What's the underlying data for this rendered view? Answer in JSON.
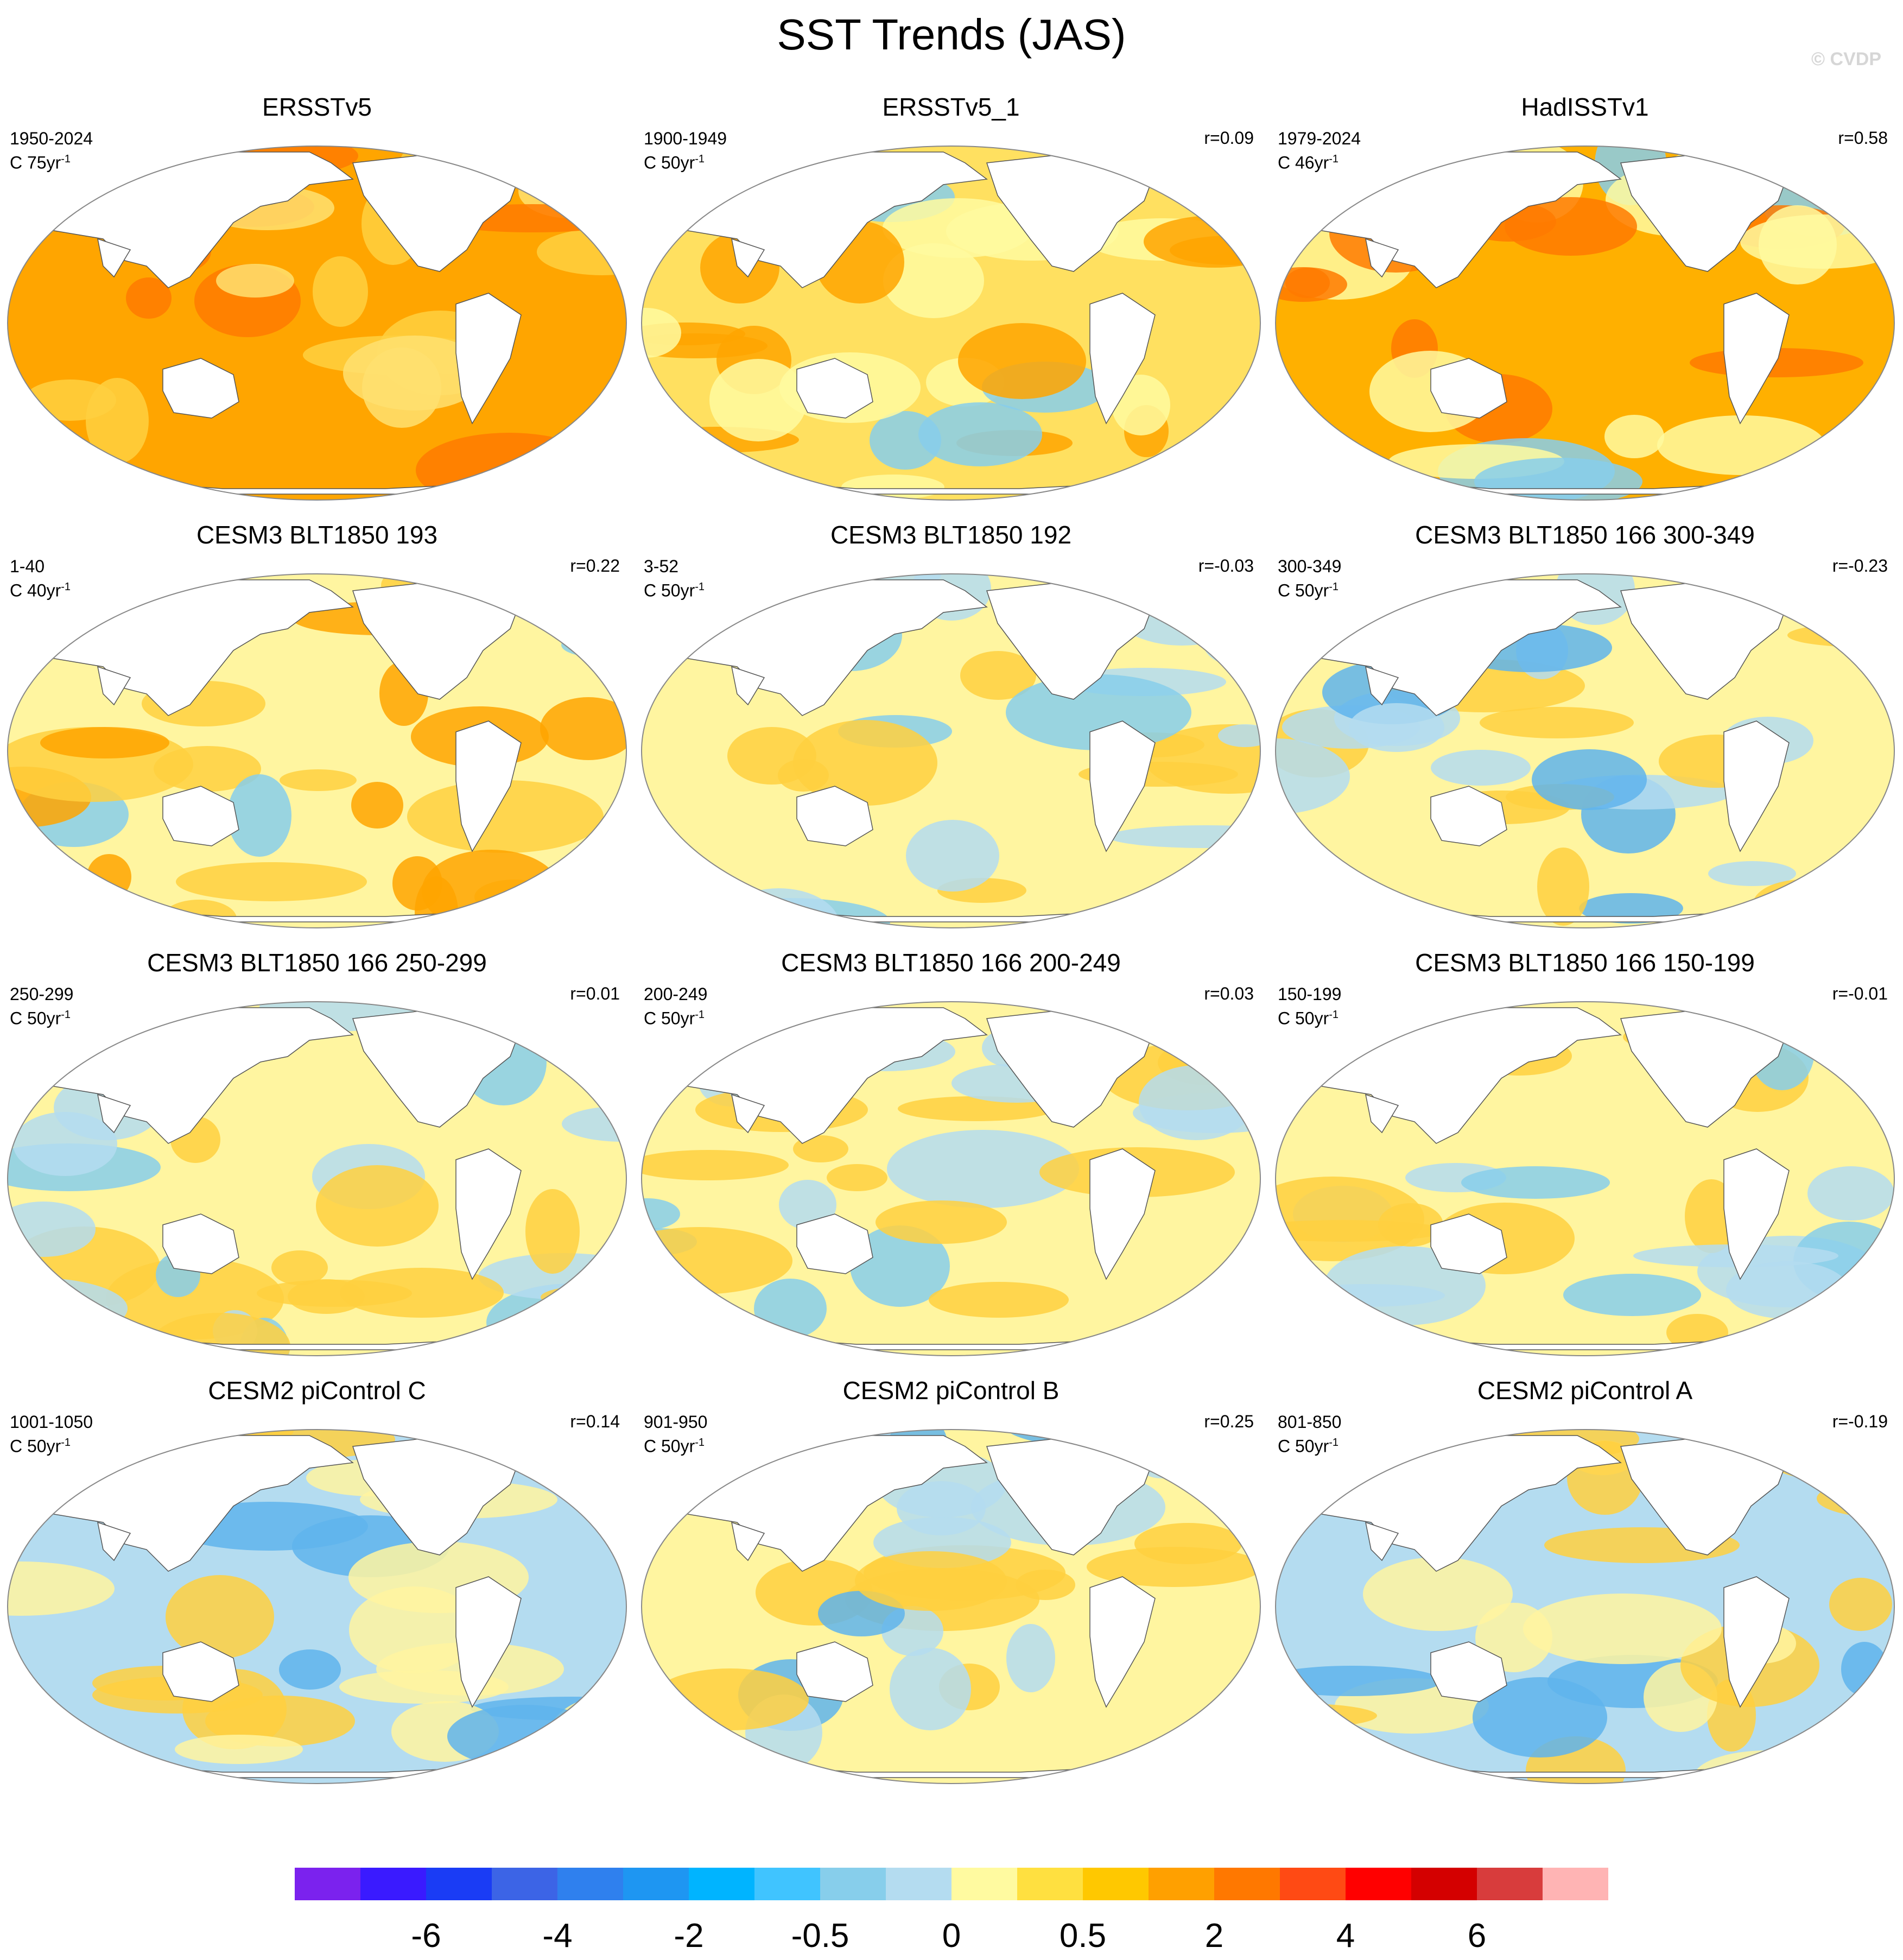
{
  "title": "SST Trends (JAS)",
  "watermark": "© CVDP",
  "panels": [
    {
      "title": "ERSSTv5",
      "period": "1950-2024",
      "units": "C 75yr",
      "r": "",
      "colors": {
        "base": "#ffa500",
        "hi": "#ff7a00",
        "lo": "#ffe070",
        "cool": "#ffd040"
      }
    },
    {
      "title": "ERSSTv5_1",
      "period": "1900-1949",
      "units": "C 50yr",
      "r": "r=0.09",
      "colors": {
        "base": "#ffe060",
        "hi": "#ffa500",
        "lo": "#87ceeb",
        "cool": "#fffaa0"
      }
    },
    {
      "title": "HadISSTv1",
      "period": "1979-2024",
      "units": "C 46yr",
      "r": "r=0.58",
      "colors": {
        "base": "#ffb000",
        "hi": "#ff7a00",
        "lo": "#87ceeb",
        "cool": "#fffaa0"
      }
    },
    {
      "title": "CESM3 BLT1850 193",
      "period": "1-40",
      "units": "C 40yr",
      "r": "r=0.22",
      "colors": {
        "base": "#fff5a0",
        "hi": "#ffa500",
        "lo": "#87ceeb",
        "cool": "#ffd040"
      }
    },
    {
      "title": "CESM3 BLT1850 192",
      "period": "3-52",
      "units": "C 50yr",
      "r": "r=-0.03",
      "colors": {
        "base": "#fff5a0",
        "hi": "#ffd040",
        "lo": "#87ceeb",
        "cool": "#b4dcf0"
      }
    },
    {
      "title": "CESM3 BLT1850 166 300-349",
      "period": "300-349",
      "units": "C 50yr",
      "r": "r=-0.23",
      "colors": {
        "base": "#fff5a0",
        "hi": "#ffd040",
        "lo": "#5fb4ec",
        "cool": "#b4dcf0"
      }
    },
    {
      "title": "CESM3 BLT1850 166 250-299",
      "period": "250-299",
      "units": "C 50yr",
      "r": "r=0.01",
      "colors": {
        "base": "#fff5a0",
        "hi": "#ffd040",
        "lo": "#87ceeb",
        "cool": "#b4dcf0"
      }
    },
    {
      "title": "CESM3 BLT1850 166 200-249",
      "period": "200-249",
      "units": "C 50yr",
      "r": "r=0.03",
      "colors": {
        "base": "#fff5a0",
        "hi": "#ffd040",
        "lo": "#87ceeb",
        "cool": "#b4dcf0"
      }
    },
    {
      "title": "CESM3 BLT1850 166 150-199",
      "period": "150-199",
      "units": "C 50yr",
      "r": "r=-0.01",
      "colors": {
        "base": "#fff5a0",
        "hi": "#ffd040",
        "lo": "#87ceeb",
        "cool": "#b4dcf0"
      }
    },
    {
      "title": "CESM2 piControl C",
      "period": "1001-1050",
      "units": "C 50yr",
      "r": "r=0.14",
      "colors": {
        "base": "#b4dcf0",
        "hi": "#ffd040",
        "lo": "#5fb4ec",
        "cool": "#fff5a0"
      }
    },
    {
      "title": "CESM2 piControl B",
      "period": "901-950",
      "units": "C 50yr",
      "r": "r=0.25",
      "colors": {
        "base": "#fff5a0",
        "hi": "#ffd040",
        "lo": "#5fb4ec",
        "cool": "#b4dcf0"
      }
    },
    {
      "title": "CESM2 piControl A",
      "period": "801-850",
      "units": "C 50yr",
      "r": "r=-0.19",
      "colors": {
        "base": "#b4dcf0",
        "hi": "#ffd040",
        "lo": "#5fb4ec",
        "cool": "#fff5a0"
      }
    }
  ],
  "units_superscript": "-1",
  "colorbar": {
    "colors": [
      "#7b22ee",
      "#3a1aff",
      "#1a3cf5",
      "#3c64e6",
      "#2f80ee",
      "#1e96f2",
      "#00b4ff",
      "#40c4ff",
      "#87ceeb",
      "#b4dcf0",
      "#fffaa0",
      "#ffe040",
      "#ffc800",
      "#ffa000",
      "#ff7800",
      "#ff4a14",
      "#ff0000",
      "#d40000",
      "#d83c3c",
      "#ffb4b4"
    ],
    "labels": [
      "-6",
      "-4",
      "-2",
      "-0.5",
      "0",
      "0.5",
      "2",
      "4",
      "6"
    ]
  }
}
